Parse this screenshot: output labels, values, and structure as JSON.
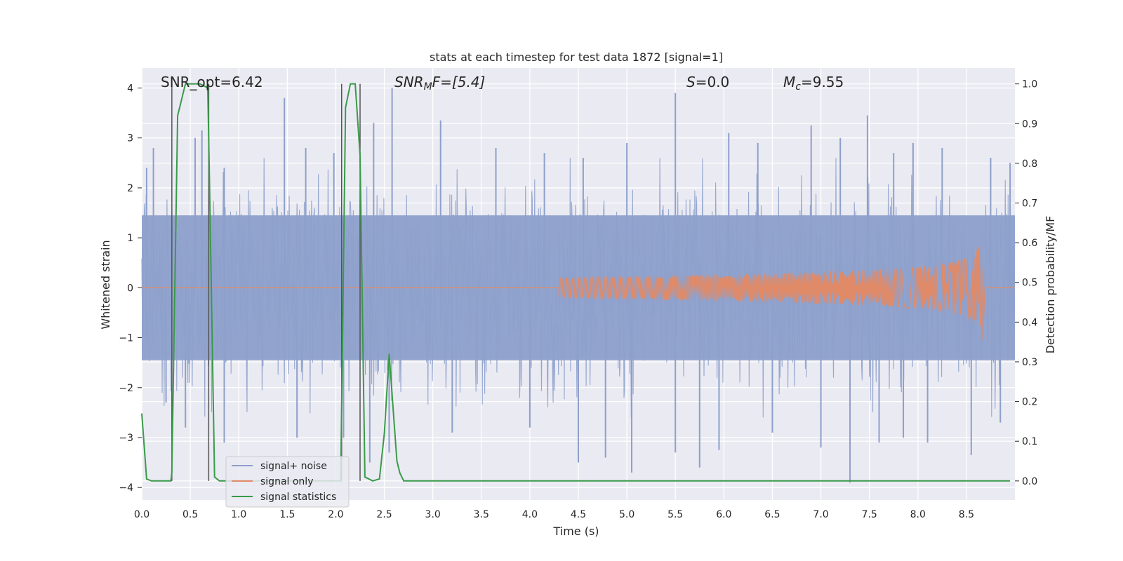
{
  "chart_data": {
    "type": "line",
    "title": "stats at each timestep for test data 1872 [signal=1]",
    "xlabel": "Time (s)",
    "ylabel": "Whitened strain",
    "ylabel_right": "Detection probability/MF",
    "xlim": [
      0.0,
      9.0
    ],
    "ylim": [
      -4.25,
      4.4
    ],
    "ylim_right": [
      -0.048,
      1.04
    ],
    "x_ticks": [
      0.0,
      0.5,
      1.0,
      1.5,
      2.0,
      2.5,
      3.0,
      3.5,
      4.0,
      4.5,
      5.0,
      5.5,
      6.0,
      6.5,
      7.0,
      7.5,
      8.0,
      8.5
    ],
    "x_tick_labels": [
      "0.0",
      "0.5",
      "1.0",
      "1.5",
      "2.0",
      "2.5",
      "3.0",
      "3.5",
      "4.0",
      "4.5",
      "5.0",
      "5.5",
      "6.0",
      "6.5",
      "7.0",
      "7.5",
      "8.0",
      "8.5"
    ],
    "y_ticks": [
      -4,
      -3,
      -2,
      -1,
      0,
      1,
      2,
      3,
      4
    ],
    "y_tick_labels": [
      "−4",
      "−3",
      "−2",
      "−1",
      "0",
      "1",
      "2",
      "3",
      "4"
    ],
    "y_ticks_right": [
      0.0,
      0.1,
      0.2,
      0.3,
      0.4,
      0.5,
      0.6,
      0.7,
      0.8,
      0.9,
      1.0
    ],
    "y_tick_labels_right": [
      "0.0",
      "0.1",
      "0.2",
      "0.3",
      "0.4",
      "0.5",
      "0.6",
      "0.7",
      "0.8",
      "0.9",
      "1.0"
    ],
    "grid": true,
    "legend_position": "lower-left",
    "annotations": {
      "snr_opt": "SNR_opt=6.42",
      "snr_mf_base": "SNR",
      "snr_mf_sub": "M",
      "snr_mf_rest": "F=[5.4]",
      "s_sym": "S",
      "s_rest": "=0.0",
      "mc_sym": "M",
      "mc_sub": "c",
      "mc_rest": "=9.55"
    },
    "series": [
      {
        "name": "signal+ noise",
        "color": "#8da0cb",
        "axis": "left",
        "note_style": "dense noise band",
        "seed": 1872,
        "sigma": 1.0,
        "samples": 1800,
        "spikes_top": [
          [
            0.05,
            2.4
          ],
          [
            0.12,
            2.8
          ],
          [
            0.55,
            3.0
          ],
          [
            0.62,
            3.15
          ],
          [
            0.85,
            2.4
          ],
          [
            1.47,
            3.8
          ],
          [
            1.69,
            2.8
          ],
          [
            1.98,
            2.7
          ],
          [
            2.39,
            3.3
          ],
          [
            2.58,
            4.0
          ],
          [
            3.08,
            3.35
          ],
          [
            3.65,
            2.8
          ],
          [
            4.15,
            2.7
          ],
          [
            4.55,
            2.6
          ],
          [
            5.0,
            2.9
          ],
          [
            5.5,
            3.9
          ],
          [
            6.05,
            3.1
          ],
          [
            6.35,
            2.9
          ],
          [
            6.9,
            3.25
          ],
          [
            7.2,
            3.0
          ],
          [
            7.48,
            3.45
          ],
          [
            7.75,
            2.7
          ],
          [
            7.95,
            2.9
          ],
          [
            8.25,
            2.8
          ],
          [
            8.75,
            2.6
          ],
          [
            8.95,
            2.5
          ]
        ],
        "spikes_bottom": [
          [
            0.25,
            -2.3
          ],
          [
            0.45,
            -2.8
          ],
          [
            0.85,
            -3.1
          ],
          [
            1.6,
            -3.0
          ],
          [
            2.08,
            -3.0
          ],
          [
            2.35,
            -3.5
          ],
          [
            2.55,
            -3.3
          ],
          [
            3.2,
            -2.9
          ],
          [
            4.0,
            -2.8
          ],
          [
            4.5,
            -3.5
          ],
          [
            4.78,
            -3.4
          ],
          [
            5.05,
            -3.7
          ],
          [
            5.5,
            -3.3
          ],
          [
            5.75,
            -3.6
          ],
          [
            5.95,
            -3.25
          ],
          [
            6.5,
            -2.9
          ],
          [
            7.0,
            -3.2
          ],
          [
            7.3,
            -3.9
          ],
          [
            7.6,
            -3.1
          ],
          [
            7.85,
            -3.0
          ],
          [
            8.1,
            -3.1
          ],
          [
            8.55,
            -3.35
          ],
          [
            8.85,
            -2.7
          ]
        ]
      },
      {
        "name": "signal only",
        "color": "#e08a68",
        "axis": "left",
        "chirp_start": 4.3,
        "chirp_end": 8.66,
        "peak_amp": 0.82
      },
      {
        "name": "signal statistics",
        "color": "#3a9a4a",
        "axis": "right",
        "x": [
          0.0,
          0.05,
          0.1,
          0.2,
          0.3,
          0.31,
          0.37,
          0.45,
          0.5,
          0.6,
          0.68,
          0.7,
          0.75,
          0.8,
          0.85,
          0.9,
          1.0,
          1.5,
          2.0,
          2.05,
          2.1,
          2.15,
          2.2,
          2.25,
          2.3,
          2.38,
          2.45,
          2.5,
          2.55,
          2.6,
          2.63,
          2.66,
          2.7,
          3.0,
          4.0,
          5.0,
          6.0,
          7.0,
          8.0,
          8.95
        ],
        "y": [
          0.17,
          0.005,
          0.0,
          0.0,
          0.0,
          0.02,
          0.92,
          1.0,
          1.0,
          1.0,
          0.99,
          0.72,
          0.01,
          0.0,
          0.0,
          0.0,
          0.0,
          0.0,
          0.0,
          0.0,
          0.94,
          1.0,
          1.0,
          0.82,
          0.01,
          0.0,
          0.005,
          0.12,
          0.32,
          0.15,
          0.05,
          0.02,
          0.0,
          0.0,
          0.0,
          0.0,
          0.0,
          0.0,
          0.0,
          0.0
        ]
      }
    ],
    "vertical_markers": [
      {
        "name": "left-marker",
        "x": 0.31,
        "y_right": [
          0.0,
          1.0
        ]
      },
      {
        "name": "left-marker",
        "x": 0.69,
        "y_right": [
          0.0,
          1.0
        ]
      },
      {
        "name": "left-marker",
        "x": 2.06,
        "y_right": [
          0.0,
          1.0
        ]
      },
      {
        "name": "left-marker",
        "x": 2.25,
        "y_right": [
          0.0,
          1.0
        ]
      }
    ]
  }
}
